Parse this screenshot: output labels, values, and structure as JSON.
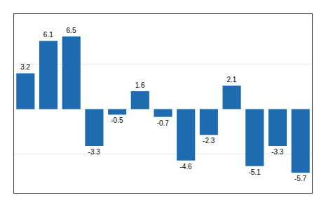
{
  "chart_data": {
    "type": "bar",
    "categories": [
      null,
      null,
      null,
      null,
      null,
      null,
      null,
      null,
      null,
      null,
      null,
      null,
      null
    ],
    "values": [
      3.2,
      6.1,
      6.5,
      -3.3,
      -0.5,
      1.6,
      -0.7,
      -4.6,
      -2.3,
      2.1,
      -5.1,
      -3.3,
      -5.7
    ],
    "color": "#1F6BB0",
    "ylim": [
      -7.5,
      8.5
    ],
    "yticks": [
      -4,
      0,
      4
    ],
    "grid": true,
    "data_labels": true,
    "tick_labels": false
  }
}
